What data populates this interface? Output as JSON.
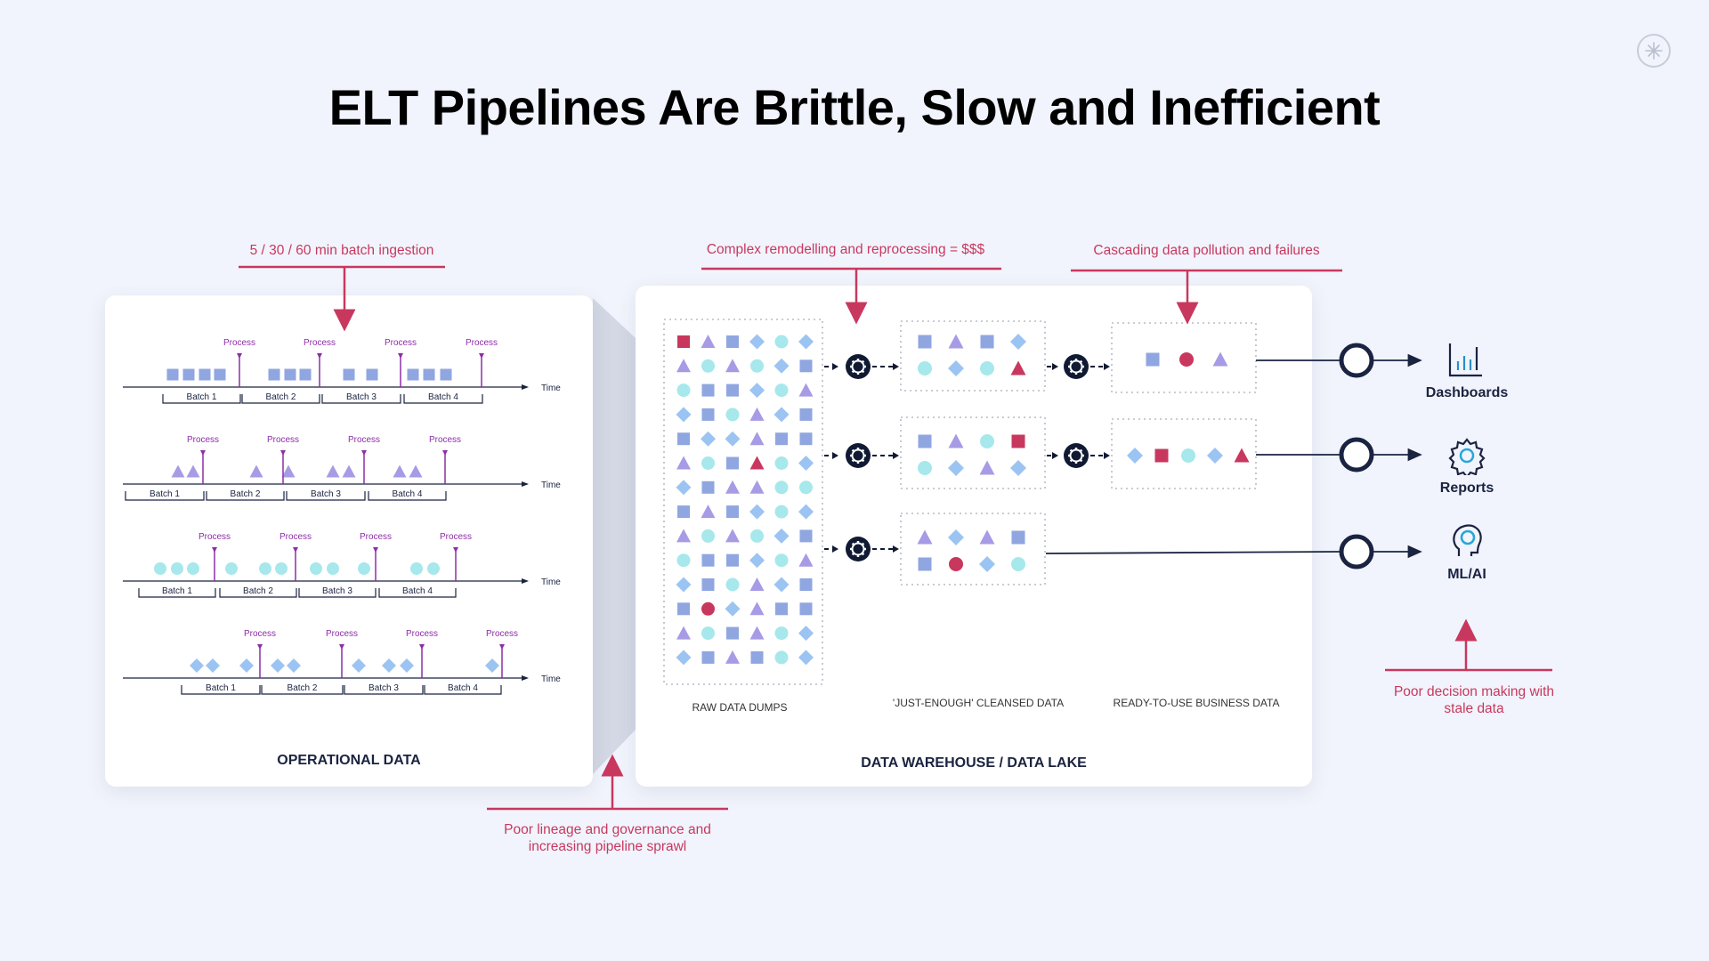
{
  "title": "ELT Pipelines Are Brittle, Slow and Inefficient",
  "colors": {
    "background": "#f1f4fc",
    "accent_red": "#c8385e",
    "navy": "#1a2340",
    "square": "#8fa6e0",
    "triangle": "#a79be6",
    "circle": "#a6e8ec",
    "diamond": "#9cc4f2",
    "highlight": "#c8385e",
    "process_purple": "#8e2da8"
  },
  "operational": {
    "panel_label": "OPERATIONAL DATA",
    "process_label": "Process",
    "time_label": "Time",
    "batch_labels": [
      "Batch 1",
      "Batch 2",
      "Batch 3",
      "Batch 4"
    ],
    "rows": [
      {
        "shape": "square",
        "icon": "square-icon"
      },
      {
        "shape": "triangle",
        "icon": "triangle-icon"
      },
      {
        "shape": "circle",
        "icon": "circle-icon"
      },
      {
        "shape": "diamond",
        "icon": "diamond-icon"
      }
    ]
  },
  "warehouse": {
    "panel_label": "DATA WAREHOUSE / DATA LAKE",
    "stage_labels": [
      "RAW DATA DUMPS",
      "'JUST-ENOUGH' CLEANSED DATA",
      "READY-TO-USE BUSINESS DATA"
    ],
    "transform_icon": "gear-icon"
  },
  "callouts": {
    "batch_ingestion": "5 / 30 / 60 min batch ingestion",
    "remodelling": "Complex remodelling and reprocessing = $$$",
    "pollution": "Cascading data pollution and failures",
    "lineage": "Poor lineage and governance and increasing pipeline sprawl",
    "decision": "Poor decision making with stale data"
  },
  "outputs": [
    {
      "label": "Dashboards",
      "icon": "bar-chart-icon"
    },
    {
      "label": "Reports",
      "icon": "gear-icon"
    },
    {
      "label": "ML/AI",
      "icon": "ai-head-icon"
    }
  ]
}
